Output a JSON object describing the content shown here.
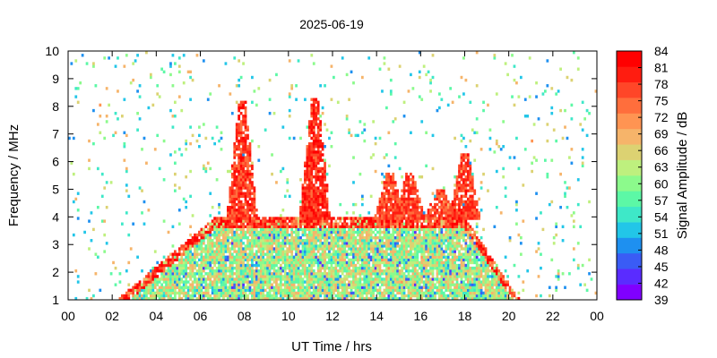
{
  "chart_data": {
    "type": "heatmap",
    "title": "2025-06-19",
    "xlabel": "UT Time / hrs",
    "ylabel": "Frequency / MHz",
    "colorbar_label": "Signal Amplitude / dB",
    "xlim": [
      0,
      24
    ],
    "ylim": [
      1,
      10
    ],
    "x_ticks": [
      "00",
      "02",
      "04",
      "06",
      "08",
      "10",
      "12",
      "14",
      "16",
      "18",
      "20",
      "22",
      "00"
    ],
    "y_ticks": [
      "1",
      "2",
      "3",
      "4",
      "5",
      "6",
      "7",
      "8",
      "9",
      "10"
    ],
    "colorbar_ticks": [
      "84",
      "81",
      "78",
      "75",
      "72",
      "69",
      "66",
      "63",
      "60",
      "57",
      "54",
      "51",
      "48",
      "45",
      "42",
      "39"
    ],
    "color_range_db": [
      39,
      84
    ],
    "colormap": [
      "#8000ff",
      "#5a2cff",
      "#3a5cf5",
      "#1e90f0",
      "#22c6e8",
      "#3ee8c8",
      "#5cf8a6",
      "#8cfa8c",
      "#bef07e",
      "#dcd272",
      "#f6b46a",
      "#ff9452",
      "#ff6e3c",
      "#ff4628",
      "#ff1c10",
      "#ff0000"
    ],
    "grid": false,
    "regions": [
      {
        "name": "daytime band",
        "t_start": 2.2,
        "t_end": 20.5,
        "f_low": 1.0,
        "f_high": 4.0,
        "level_db": 60
      },
      {
        "name": "spike",
        "t_center": 7.9,
        "f_top": 8.2,
        "level_db": 82
      },
      {
        "name": "spike",
        "t_center": 11.2,
        "f_top": 8.3,
        "level_db": 83
      },
      {
        "name": "spike",
        "t_center": 14.6,
        "f_top": 5.6,
        "level_db": 81
      },
      {
        "name": "spike",
        "t_center": 15.5,
        "f_top": 5.6,
        "level_db": 81
      },
      {
        "name": "spike",
        "t_center": 16.9,
        "f_top": 5.0,
        "level_db": 80
      },
      {
        "name": "spike",
        "t_center": 18.0,
        "f_top": 6.3,
        "level_db": 82
      }
    ]
  }
}
